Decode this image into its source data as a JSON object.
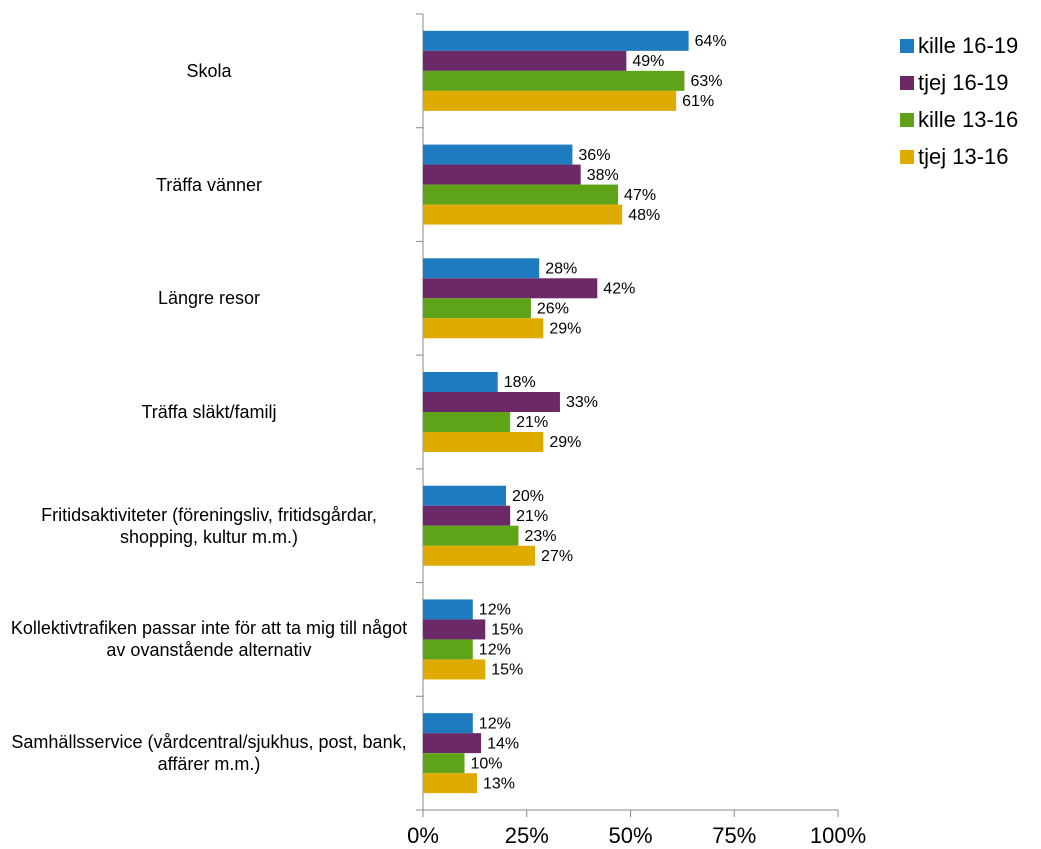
{
  "chart_data": {
    "type": "hbar",
    "categories": [
      "Skola",
      "Träffa vänner",
      "Längre resor",
      "Träffa släkt/familj",
      "Fritidsaktiviteter (föreningsliv, fritidsgårdar, shopping, kultur m.m.)",
      "Kollektivtrafiken passar inte för att ta mig till något av ovanstående alternativ",
      "Samhällsservice (vårdcentral/sjukhus, post, bank, affärer m.m.)"
    ],
    "series": [
      {
        "name": "kille 16-19",
        "color": "#1f7bbf",
        "values": [
          64,
          36,
          28,
          18,
          20,
          12,
          12
        ],
        "value_labels": [
          "64%",
          "36%",
          "28%",
          "18%",
          "20%",
          "12%",
          "12%"
        ]
      },
      {
        "name": "tjej 16-19",
        "color": "#6b2a67",
        "values": [
          49,
          38,
          42,
          33,
          21,
          15,
          14
        ],
        "value_labels": [
          "49%",
          "38%",
          "42%",
          "33%",
          "21%",
          "15%",
          "14%"
        ]
      },
      {
        "name": "kille 13-16",
        "color": "#5fa319",
        "values": [
          63,
          47,
          26,
          21,
          23,
          12,
          10
        ],
        "value_labels": [
          "63%",
          "47%",
          "26%",
          "21%",
          "23%",
          "12%",
          "10%"
        ]
      },
      {
        "name": "tjej 13-16",
        "color": "#dfab00",
        "values": [
          61,
          48,
          29,
          29,
          27,
          15,
          13
        ],
        "value_labels": [
          "61%",
          "48%",
          "29%",
          "29%",
          "27%",
          "15%",
          "13%"
        ]
      }
    ],
    "xlim": [
      0,
      100
    ],
    "xticks": [
      {
        "value": 0,
        "label": "0%"
      },
      {
        "value": 25,
        "label": "25%"
      },
      {
        "value": 50,
        "label": "50%"
      },
      {
        "value": 75,
        "label": "75%"
      },
      {
        "value": 100,
        "label": "100%"
      }
    ],
    "legend": "top-right"
  }
}
